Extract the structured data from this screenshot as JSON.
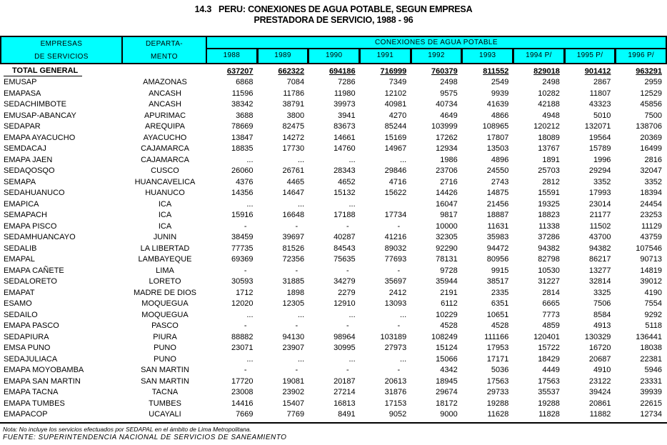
{
  "colors": {
    "header_bg": "#00ffff",
    "border": "#000000",
    "text": "#000000",
    "page_bg": "#ffffff"
  },
  "title": {
    "line1": "14.3   PERU: CONEXIONES DE AGUA POTABLE, SEGUN EMPRESA",
    "line2": "PRESTADORA DE SERVICIO, 1988 - 96"
  },
  "table": {
    "header": {
      "col1_line1": "EMPRESAS",
      "col1_line2": "DE SERVICIOS",
      "col2_line1": "DEPARTA-",
      "col2_line2": "MENTO",
      "span": "CONEXIONES DE AGUA POTABLE",
      "years": [
        "1988",
        "1989",
        "1990",
        "1991",
        "1992",
        "1993",
        "1994 P/",
        "1995 P/",
        "1996 P/"
      ]
    },
    "total": {
      "label": "TOTAL GENERAL",
      "values": [
        637207,
        662322,
        694186,
        716999,
        760379,
        811552,
        829018,
        901412,
        963291
      ]
    },
    "rows": [
      {
        "empresa": "EMUSAP",
        "departamento": "AMAZONAS",
        "values": [
          6868,
          7084,
          7286,
          7349,
          2498,
          2549,
          2498,
          2867,
          2959
        ]
      },
      {
        "empresa": "EMAPASA",
        "departamento": "ANCASH",
        "values": [
          11596,
          11786,
          11980,
          12102,
          9575,
          9939,
          10282,
          11807,
          12529
        ]
      },
      {
        "empresa": "SEDACHIMBOTE",
        "departamento": "ANCASH",
        "values": [
          38342,
          38791,
          39973,
          40981,
          40734,
          41639,
          42188,
          43323,
          45856
        ]
      },
      {
        "empresa": "EMUSAP-ABANCAY",
        "departamento": "APURIMAC",
        "values": [
          3688,
          3800,
          3941,
          4270,
          4649,
          4866,
          4948,
          5010,
          7500
        ]
      },
      {
        "empresa": "SEDAPAR",
        "departamento": "AREQUIPA",
        "values": [
          78669,
          82475,
          83673,
          85244,
          103999,
          108965,
          120212,
          132071,
          138706
        ]
      },
      {
        "empresa": "EMAPA AYACUCHO",
        "departamento": "AYACUCHO",
        "values": [
          13847,
          14272,
          14661,
          15169,
          17262,
          17807,
          18089,
          19564,
          20369
        ]
      },
      {
        "empresa": "SEMDACAJ",
        "departamento": "CAJAMARCA",
        "values": [
          18835,
          17730,
          14760,
          14967,
          12934,
          13503,
          13767,
          15789,
          16499
        ]
      },
      {
        "empresa": "EMAPA JAEN",
        "departamento": "CAJAMARCA",
        "values": [
          "...",
          "...",
          "...",
          "...",
          1986,
          4896,
          1891,
          1996,
          2816
        ]
      },
      {
        "empresa": "SEDAQOSQO",
        "departamento": "CUSCO",
        "values": [
          26060,
          26761,
          28343,
          29846,
          23706,
          24550,
          25703,
          29294,
          32047
        ]
      },
      {
        "empresa": "SEMAPA",
        "departamento": "HUANCAVELICA",
        "values": [
          4376,
          4465,
          4652,
          4716,
          2716,
          2743,
          2812,
          3352,
          3352
        ]
      },
      {
        "empresa": "SEDAHUANUCO",
        "departamento": "HUANUCO",
        "values": [
          14356,
          14647,
          15132,
          15622,
          14426,
          14875,
          15591,
          17993,
          18394
        ]
      },
      {
        "empresa": "EMAPICA",
        "departamento": "ICA",
        "values": [
          "...",
          "...",
          "...",
          "",
          16047,
          21456,
          19325,
          23014,
          24454
        ]
      },
      {
        "empresa": "SEMAPACH",
        "departamento": "ICA",
        "values": [
          15916,
          16648,
          17188,
          17734,
          9817,
          18887,
          18823,
          21177,
          23253
        ]
      },
      {
        "empresa": "EMAPA PISCO",
        "departamento": "ICA",
        "values": [
          "-",
          "-",
          "-",
          "-",
          10000,
          11631,
          11338,
          11502,
          11129
        ]
      },
      {
        "empresa": "SEDAMHUANCAYO",
        "departamento": "JUNIN",
        "values": [
          38459,
          39697,
          40287,
          41216,
          32305,
          35983,
          37286,
          43700,
          43759
        ]
      },
      {
        "empresa": "SEDALIB",
        "departamento": "LA LIBERTAD",
        "values": [
          77735,
          81526,
          84543,
          89032,
          92290,
          94472,
          94382,
          94382,
          107546
        ]
      },
      {
        "empresa": "EMAPAL",
        "departamento": "LAMBAYEQUE",
        "values": [
          69369,
          72356,
          75635,
          77693,
          78131,
          80956,
          82798,
          86217,
          90713
        ]
      },
      {
        "empresa": "EMAPA CAÑETE",
        "departamento": "LIMA",
        "values": [
          "-",
          "-",
          "-",
          "-",
          9728,
          9915,
          10530,
          13277,
          14819
        ]
      },
      {
        "empresa": "SEDALORETO",
        "departamento": "LORETO",
        "values": [
          30593,
          31885,
          34279,
          35697,
          35944,
          38517,
          31227,
          32814,
          39012
        ]
      },
      {
        "empresa": "EMAPAT",
        "departamento": "MADRE DE DIOS",
        "values": [
          1712,
          1898,
          2279,
          2412,
          2191,
          2335,
          2814,
          3325,
          4190
        ]
      },
      {
        "empresa": "ESAMO",
        "departamento": "MOQUEGUA",
        "values": [
          12020,
          12305,
          12910,
          13093,
          6112,
          6351,
          6665,
          7506,
          7554
        ]
      },
      {
        "empresa": "SEDAILO",
        "departamento": "MOQUEGUA",
        "values": [
          "...",
          "...",
          "...",
          "...",
          10229,
          10651,
          7773,
          8584,
          9292
        ]
      },
      {
        "empresa": "EMAPA PASCO",
        "departamento": "PASCO",
        "values": [
          "-",
          "-",
          "-",
          "-",
          4528,
          4528,
          4859,
          4913,
          5118
        ]
      },
      {
        "empresa": "SEDAPIURA",
        "departamento": "PIURA",
        "values": [
          88882,
          94130,
          98964,
          103189,
          108249,
          111166,
          120401,
          130329,
          136441
        ]
      },
      {
        "empresa": "EMSA PUNO",
        "departamento": "PUNO",
        "values": [
          23071,
          23907,
          30995,
          27973,
          15124,
          17953,
          15722,
          16720,
          18038
        ]
      },
      {
        "empresa": "SEDAJULIACA",
        "departamento": "PUNO",
        "values": [
          "...",
          "...",
          "...",
          "...",
          15066,
          17171,
          18429,
          20687,
          22381
        ]
      },
      {
        "empresa": "EMAPA MOYOBAMBA",
        "departamento": "SAN MARTIN",
        "values": [
          "-",
          "-",
          "-",
          "-",
          4342,
          5036,
          4449,
          4910,
          5946
        ]
      },
      {
        "empresa": "EMAPA SAN MARTIN",
        "departamento": "SAN MARTIN",
        "values": [
          17720,
          19081,
          20187,
          20613,
          18945,
          17563,
          17563,
          23122,
          23331
        ]
      },
      {
        "empresa": "EMAPA TACNA",
        "departamento": "TACNA",
        "values": [
          23008,
          23902,
          27214,
          31876,
          29674,
          29733,
          35537,
          39424,
          39939
        ]
      },
      {
        "empresa": "EMAPA TUMBES",
        "departamento": "TUMBES",
        "values": [
          14416,
          15407,
          16813,
          17153,
          18172,
          19288,
          19288,
          20861,
          22615
        ]
      },
      {
        "empresa": "EMAPACOP",
        "departamento": "UCAYALI",
        "values": [
          7669,
          7769,
          8491,
          9052,
          9000,
          11628,
          11828,
          11882,
          12734
        ]
      }
    ]
  },
  "footer": {
    "nota": "Nota: No incluye los servicios efectuados por SEDAPAL en el ámbito de Lima Metropolitana.",
    "fuente": "FUENTE: SUPERINTENDENCIA NACIONAL DE SERVICIOS DE SANEAMIENTO"
  }
}
